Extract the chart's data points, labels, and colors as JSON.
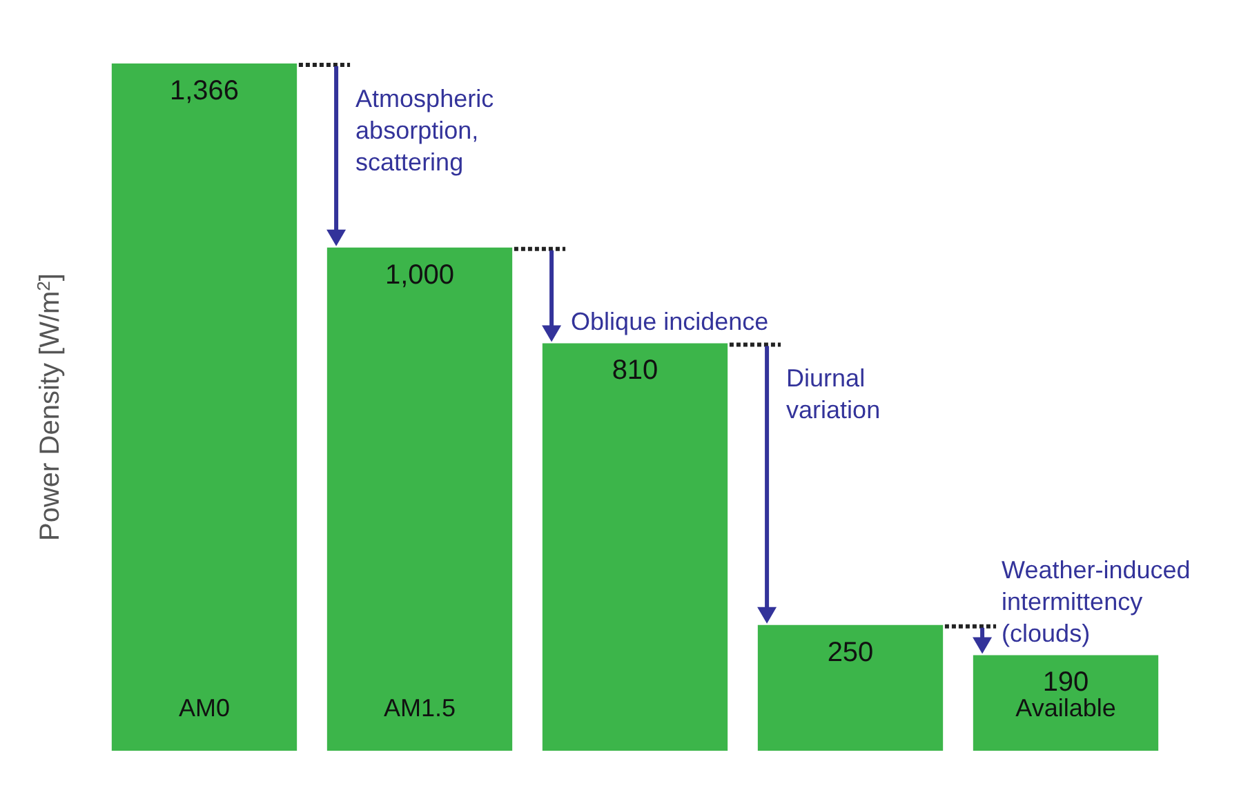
{
  "chart_data": {
    "type": "bar",
    "ylabel": "Power Density [W/m$^{2}$]",
    "categories": [
      "AM0",
      "AM1.5",
      null,
      null,
      "Available"
    ],
    "values": [
      1366,
      1000,
      810,
      250,
      190
    ],
    "value_labels": [
      "1,366",
      "1,000",
      "810",
      "250",
      "190"
    ],
    "color": "#3cb54a",
    "grid": false,
    "annotations": [
      "Atmospheric absorption, scattering",
      "Oblique incidence",
      "Diurnal variation",
      "Weather-induced intermittency (clouds)"
    ]
  }
}
